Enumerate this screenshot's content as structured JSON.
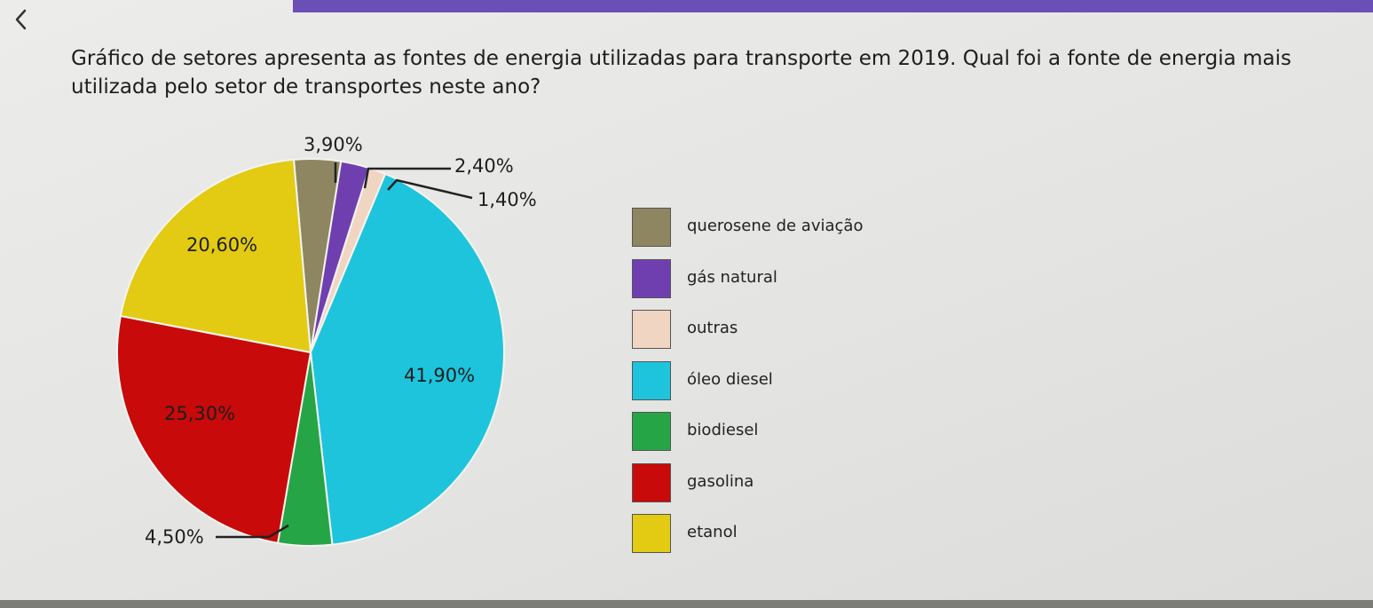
{
  "nav": {
    "back_icon": "chevron-left-icon"
  },
  "question": {
    "text": "Gráfico de setores apresenta as fontes de energia utilizadas para transporte em 2019. Qual foi a fonte de energia mais utilizada pelo setor de transportes neste ano?"
  },
  "colors": {
    "top_bar": "#6a4fb5",
    "background": "#e6e6e4"
  },
  "chart_data": {
    "type": "pie",
    "title": "",
    "unit": "%",
    "start_angle_deg": -5,
    "direction": "clockwise",
    "legend_position": "right",
    "slices": [
      {
        "name": "querosene de aviação",
        "value": 3.9,
        "label": "3,90%",
        "color": "#8e8660"
      },
      {
        "name": "gás natural",
        "value": 2.4,
        "label": "2,40%",
        "color": "#6f3fb0"
      },
      {
        "name": "outras",
        "value": 1.4,
        "label": "1,40%",
        "color": "#f0d6c2"
      },
      {
        "name": "óleo diesel",
        "value": 41.9,
        "label": "41,90%",
        "color": "#1ec4dc"
      },
      {
        "name": "biodiesel",
        "value": 4.5,
        "label": "4,50%",
        "color": "#26a546"
      },
      {
        "name": "gasolina",
        "value": 25.3,
        "label": "25,30%",
        "color": "#c80a0a"
      },
      {
        "name": "etanol",
        "value": 20.6,
        "label": "20,60%",
        "color": "#e2cb12"
      }
    ]
  }
}
